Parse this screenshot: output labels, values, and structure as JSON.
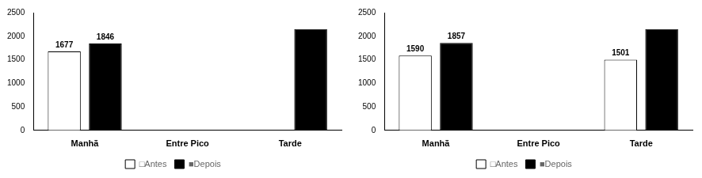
{
  "chart_data": [
    {
      "type": "bar",
      "categories": [
        "Manhã",
        "Entre Pico",
        "Tarde"
      ],
      "series": [
        {
          "name": "□Antes",
          "color": "#ffffff",
          "values": [
            1677,
            0,
            0
          ],
          "value_labels": [
            "1677",
            null,
            null
          ]
        },
        {
          "name": "■Depois",
          "color": "#000000",
          "values": [
            1846,
            0,
            2150
          ],
          "value_labels": [
            "1846",
            null,
            null
          ]
        }
      ],
      "ylim": [
        0,
        2500
      ],
      "yticks": [
        0,
        500,
        1000,
        1500,
        2000,
        2500
      ],
      "grid": false,
      "legend": "bottom"
    },
    {
      "type": "bar",
      "categories": [
        "Manhã",
        "Entre Pico",
        "Tarde"
      ],
      "series": [
        {
          "name": "□Antes",
          "color": "#ffffff",
          "values": [
            1590,
            0,
            1501
          ],
          "value_labels": [
            "1590",
            null,
            "1501"
          ]
        },
        {
          "name": "■Depois",
          "color": "#000000",
          "values": [
            1857,
            0,
            2150
          ],
          "value_labels": [
            "1857",
            null,
            null
          ]
        }
      ],
      "ylim": [
        0,
        2500
      ],
      "yticks": [
        0,
        500,
        1000,
        1500,
        2000,
        2500
      ],
      "grid": false,
      "legend": "bottom"
    }
  ]
}
